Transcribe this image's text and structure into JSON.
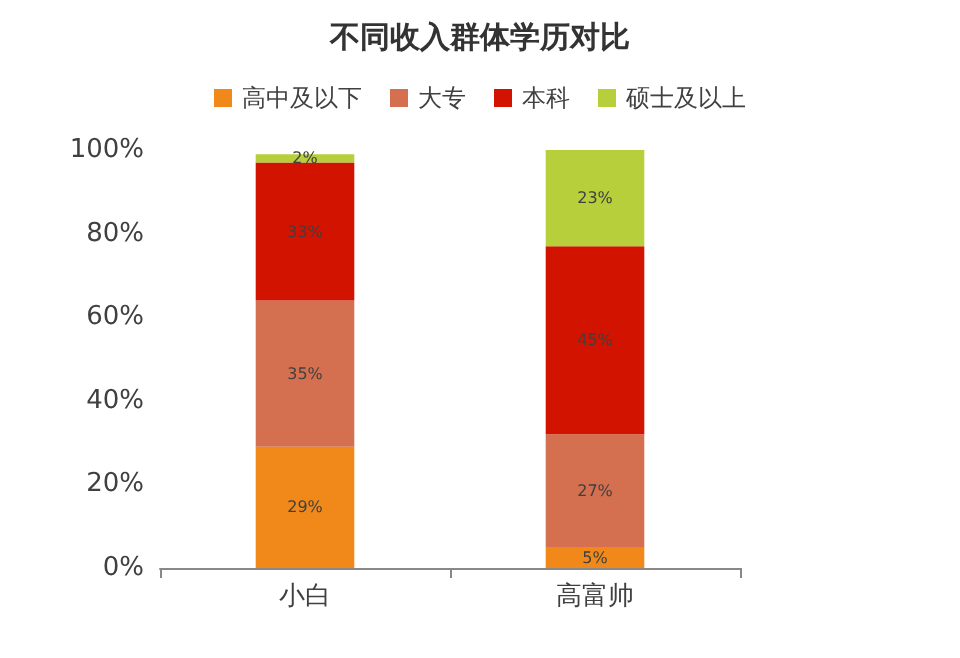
{
  "chart_data": {
    "type": "bar",
    "title": "不同收入群体学历对比",
    "categories": [
      "小白",
      "高富帅"
    ],
    "stacked": true,
    "legend": "top",
    "grid": false,
    "ylim": [
      0,
      100
    ],
    "yticks": [
      {
        "value": 0,
        "label": "0%"
      },
      {
        "value": 20,
        "label": "20%"
      },
      {
        "value": 40,
        "label": "40%"
      },
      {
        "value": 60,
        "label": "60%"
      },
      {
        "value": 80,
        "label": "80%"
      },
      {
        "value": 100,
        "label": "100%"
      }
    ],
    "series": [
      {
        "name": "高中及以下",
        "color": "#f0891a",
        "values": [
          29,
          5
        ],
        "value_labels": [
          "29%",
          "5%"
        ]
      },
      {
        "name": "大专",
        "color": "#d4704f",
        "values": [
          35,
          27
        ],
        "value_labels": [
          "35%",
          "27%"
        ]
      },
      {
        "name": "本科",
        "color": "#d11300",
        "values": [
          33,
          45
        ],
        "value_labels": [
          "33%",
          "45%"
        ]
      },
      {
        "name": "硕士及以上",
        "color": "#b6cf3a",
        "values": [
          2,
          23
        ],
        "value_labels": [
          "2%",
          "23%"
        ]
      }
    ]
  }
}
